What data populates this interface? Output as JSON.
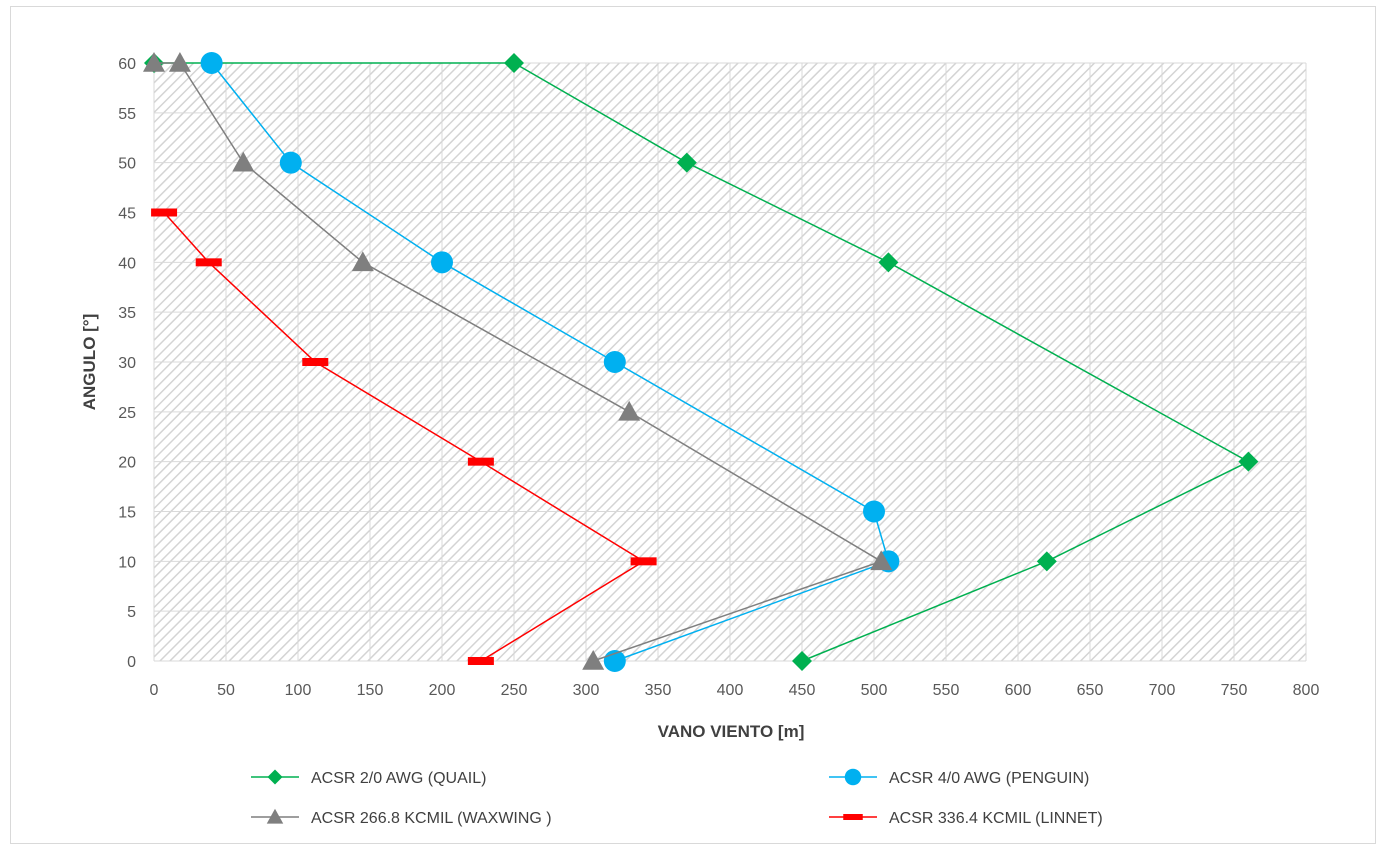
{
  "chart_data": {
    "type": "line",
    "title": "",
    "xlabel": "VANO VIENTO [m]",
    "ylabel": "ANGULO [°]",
    "xlim": [
      0,
      800
    ],
    "ylim": [
      0,
      60
    ],
    "x_ticks": [
      0,
      50,
      100,
      150,
      200,
      250,
      300,
      350,
      400,
      450,
      500,
      550,
      600,
      650,
      700,
      750,
      800
    ],
    "y_ticks": [
      0,
      5,
      10,
      15,
      20,
      25,
      30,
      35,
      40,
      45,
      50,
      55,
      60
    ],
    "grid": true,
    "plot_background": "hatched",
    "legend_position": "bottom",
    "series": [
      {
        "name": "ACSR 2/0 AWG (QUAIL)",
        "color": "#00b050",
        "marker": "diamond",
        "points": [
          [
            0,
            60
          ],
          [
            250,
            60
          ],
          [
            370,
            50
          ],
          [
            510,
            40
          ],
          [
            760,
            20
          ],
          [
            620,
            10
          ],
          [
            450,
            0
          ]
        ]
      },
      {
        "name": "ACSR 4/0 AWG (PENGUIN)",
        "color": "#00b0f0",
        "marker": "circle",
        "points": [
          [
            40,
            60
          ],
          [
            95,
            50
          ],
          [
            200,
            40
          ],
          [
            320,
            30
          ],
          [
            500,
            15
          ],
          [
            510,
            10
          ],
          [
            320,
            0
          ]
        ]
      },
      {
        "name": "ACSR 266.8 KCMIL (WAXWING )",
        "color": "#7f7f7f",
        "marker": "triangle",
        "points": [
          [
            0,
            60
          ],
          [
            18,
            60
          ],
          [
            62,
            50
          ],
          [
            145,
            40
          ],
          [
            330,
            25
          ],
          [
            505,
            10
          ],
          [
            305,
            0
          ]
        ]
      },
      {
        "name": "ACSR 336.4 KCMIL (LINNET)",
        "color": "#ff0000",
        "marker": "dash",
        "points": [
          [
            7,
            45
          ],
          [
            38,
            40
          ],
          [
            112,
            30
          ],
          [
            227,
            20
          ],
          [
            340,
            10
          ],
          [
            227,
            0
          ]
        ]
      }
    ]
  }
}
